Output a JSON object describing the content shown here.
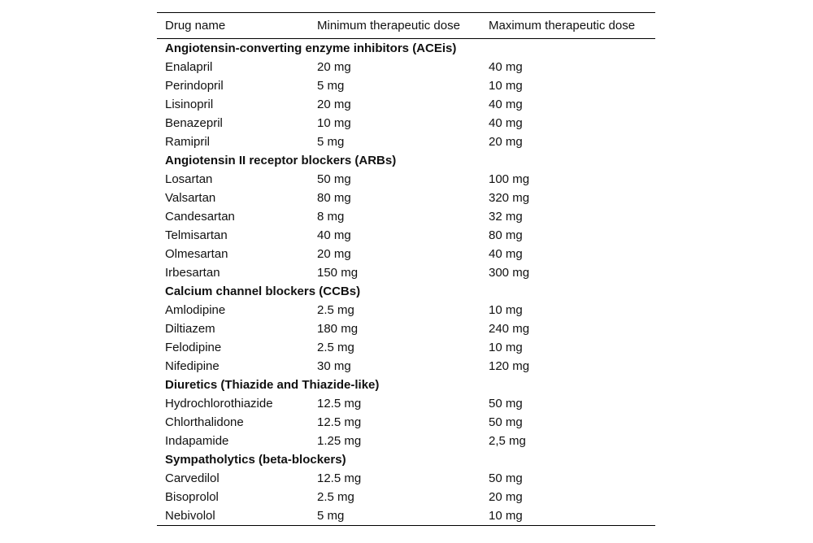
{
  "table": {
    "header": [
      "Drug name",
      "Minimum therapeutic dose",
      "Maximum therapeutic dose"
    ],
    "groups": [
      {
        "title": "Angiotensin-converting enzyme inhibitors (ACEis)",
        "rows": [
          [
            "Enalapril",
            "20 mg",
            "40 mg"
          ],
          [
            "Perindopril",
            "5 mg",
            "10 mg"
          ],
          [
            "Lisinopril",
            "20 mg",
            "40 mg"
          ],
          [
            "Benazepril",
            "10 mg",
            "40 mg"
          ],
          [
            "Ramipril",
            "5 mg",
            "20 mg"
          ]
        ]
      },
      {
        "title": "Angiotensin II receptor blockers (ARBs)",
        "rows": [
          [
            "Losartan",
            "50 mg",
            "100 mg"
          ],
          [
            "Valsartan",
            "80 mg",
            "320 mg"
          ],
          [
            "Candesartan",
            "8 mg",
            "32 mg"
          ],
          [
            "Telmisartan",
            "40 mg",
            "80 mg"
          ],
          [
            "Olmesartan",
            "20 mg",
            "40 mg"
          ],
          [
            "Irbesartan",
            "150 mg",
            "300 mg"
          ]
        ]
      },
      {
        "title": "Calcium channel blockers (CCBs)",
        "rows": [
          [
            "Amlodipine",
            "2.5 mg",
            "10 mg"
          ],
          [
            "Diltiazem",
            "180 mg",
            "240 mg"
          ],
          [
            "Felodipine",
            "2.5 mg",
            "10 mg"
          ],
          [
            "Nifedipine",
            "30 mg",
            "120 mg"
          ]
        ]
      },
      {
        "title": "Diuretics (Thiazide and Thiazide-like)",
        "rows": [
          [
            "Hydrochlorothiazide",
            "12.5 mg",
            "50 mg"
          ],
          [
            "Chlorthalidone",
            "12.5 mg",
            "50 mg"
          ],
          [
            "Indapamide",
            "1.25 mg",
            "2,5 mg"
          ]
        ]
      },
      {
        "title": "Sympatholytics (beta-blockers)",
        "rows": [
          [
            "Carvedilol",
            "12.5 mg",
            "50 mg"
          ],
          [
            "Bisoprolol",
            "2.5 mg",
            "20 mg"
          ],
          [
            "Nebivolol",
            "5 mg",
            "10 mg"
          ]
        ]
      }
    ]
  }
}
